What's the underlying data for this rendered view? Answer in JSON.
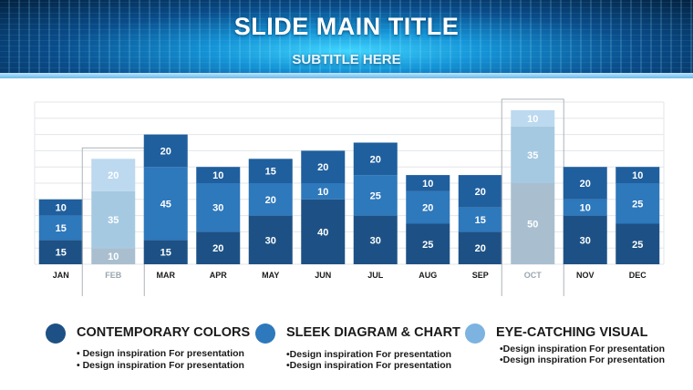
{
  "slide": {
    "title": "SLIDE MAIN TITLE",
    "subtitle": "SUBTITLE HERE"
  },
  "chart_data": {
    "type": "bar",
    "stacked": true,
    "categories": [
      "JAN",
      "FEB",
      "MAR",
      "APR",
      "MAY",
      "JUN",
      "JUL",
      "AUG",
      "SEP",
      "OCT",
      "NOV",
      "DEC"
    ],
    "series": [
      {
        "values": [
          15,
          10,
          15,
          20,
          30,
          40,
          30,
          25,
          20,
          50,
          30,
          25
        ],
        "color": "#1d5185"
      },
      {
        "values": [
          15,
          35,
          45,
          30,
          20,
          10,
          25,
          20,
          15,
          35,
          10,
          25
        ],
        "color": "#2e78bc"
      },
      {
        "values": [
          10,
          20,
          20,
          10,
          15,
          20,
          20,
          10,
          20,
          10,
          20,
          10
        ],
        "color": "#1f5f9e"
      }
    ],
    "highlighted_categories": [
      "FEB",
      "OCT"
    ],
    "faded_colors": [
      "#a9bfcf",
      "#a6c9e2",
      "#bcd9ef"
    ],
    "ylim": [
      0,
      100
    ],
    "grid": true,
    "legend_position": "bottom",
    "axis_label_color": "#1a1a1a",
    "faded_label_color": "#9aa6b0"
  },
  "legend": [
    {
      "title": "CONTEMPORARY COLORS",
      "color": "#1d5185",
      "lines": [
        "• Design inspiration For presentation",
        "• Design inspiration For presentation"
      ]
    },
    {
      "title": "SLEEK DIAGRAM & CHART",
      "color": "#2e78bc",
      "lines": [
        "•Design inspiration For presentation",
        "•Design inspiration For presentation"
      ]
    },
    {
      "title": "EYE-CATCHING VISUAL",
      "color": "#7cb3e0",
      "lines": [
        "•Design inspiration For presentation",
        "•Design inspiration For presentation"
      ]
    }
  ]
}
